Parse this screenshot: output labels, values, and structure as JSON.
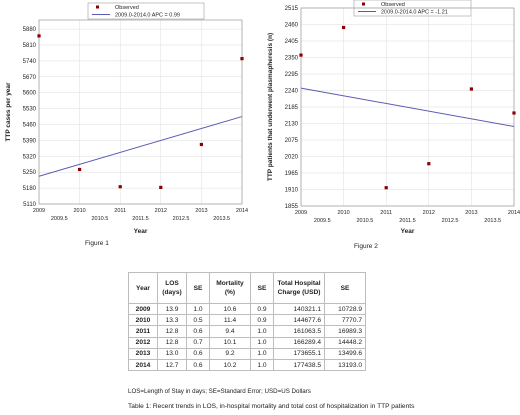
{
  "chart_data": [
    {
      "type": "scatter",
      "title": "",
      "caption": "Figure 1",
      "xlabel": "Year",
      "ylabel": "TTP cases per year",
      "xlim": [
        2009,
        2014
      ],
      "ylim": [
        5110,
        5920
      ],
      "x_ticks_major": [
        "2009",
        "2010",
        "2011",
        "2012",
        "2013",
        "2014"
      ],
      "x_ticks_minor": [
        "2009.5",
        "2010.5",
        "2011.5",
        "2012.5",
        "2013.5"
      ],
      "y_ticks": [
        "5110",
        "5180",
        "5250",
        "5320",
        "5390",
        "5460",
        "5530",
        "5600",
        "5670",
        "5740",
        "5810",
        "5880"
      ],
      "legend": {
        "placement": "top",
        "observed_label": "Observed",
        "trend_label": "2009.0-2014.0 APC = 0.99"
      },
      "series": [
        {
          "name": "Observed",
          "kind": "points",
          "x": [
            2009,
            2010,
            2011,
            2012,
            2013,
            2014
          ],
          "y": [
            5850,
            5262,
            5186,
            5183,
            5372,
            5750
          ]
        },
        {
          "name": "2009.0-2014.0 APC = 0.99",
          "kind": "line",
          "x": [
            2009,
            2014
          ],
          "y": [
            5232,
            5495
          ]
        }
      ]
    },
    {
      "type": "scatter",
      "title": "",
      "caption": "Figure 2",
      "xlabel": "Year",
      "ylabel": "TTP patients that underwent plasmapheresis (n)",
      "xlim": [
        2009,
        2014
      ],
      "ylim": [
        1855,
        2515
      ],
      "x_ticks_major": [
        "2009",
        "2010",
        "2011",
        "2012",
        "2013",
        "2014"
      ],
      "x_ticks_minor": [
        "2009.5",
        "2010.5",
        "2011.5",
        "2012.5",
        "2013.5"
      ],
      "y_ticks": [
        "1855",
        "1910",
        "1965",
        "2020",
        "2075",
        "2130",
        "2185",
        "2240",
        "2295",
        "2350",
        "2405",
        "2460",
        "2515"
      ],
      "legend": {
        "placement": "top",
        "observed_label": "Observed",
        "trend_label": "2009.0-2014.0 APC = -1.21"
      },
      "series": [
        {
          "name": "Observed",
          "kind": "points",
          "x": [
            2009,
            2010,
            2011,
            2012,
            2013,
            2014
          ],
          "y": [
            2358,
            2450,
            1916,
            1996,
            2245,
            2165
          ]
        },
        {
          "name": "2009.0-2014.0 APC = -1.21",
          "kind": "line",
          "x": [
            2009,
            2014
          ],
          "y": [
            2248,
            2120
          ]
        }
      ]
    }
  ],
  "table": {
    "headers": [
      "Year",
      "LOS (days)",
      "SE",
      "Mortality (%)",
      "SE",
      "Total Hospital Charge (USD)",
      "SE"
    ],
    "rows": [
      [
        "2009",
        "13.9",
        "1.0",
        "10.6",
        "0.9",
        "140321.1",
        "10728.9"
      ],
      [
        "2010",
        "13.3",
        "0.5",
        "11.4",
        "0.9",
        "144677.6",
        "7770.7"
      ],
      [
        "2011",
        "12.8",
        "0.6",
        "9.4",
        "1.0",
        "161063.5",
        "16989.3"
      ],
      [
        "2012",
        "12.8",
        "0.7",
        "10.1",
        "1.0",
        "166289.4",
        "14448.2"
      ],
      [
        "2013",
        "13.0",
        "0.6",
        "9.2",
        "1.0",
        "173655.1",
        "13499.6"
      ],
      [
        "2014",
        "12.7",
        "0.6",
        "10.2",
        "1.0",
        "177438.5",
        "13193.0"
      ]
    ],
    "footnote": "LOS=Length of Stay in days; SE=Standard Error; USD=US Dollars",
    "caption": "Table 1: Recent trends in LOS, in-hospital mortality and total cost of hospitalization in TTP patients"
  },
  "colors": {
    "points": "#8b0000",
    "trend_line": "#5b5bb5",
    "grid": "#dcdcdc",
    "frame": "#9a9a9a"
  }
}
